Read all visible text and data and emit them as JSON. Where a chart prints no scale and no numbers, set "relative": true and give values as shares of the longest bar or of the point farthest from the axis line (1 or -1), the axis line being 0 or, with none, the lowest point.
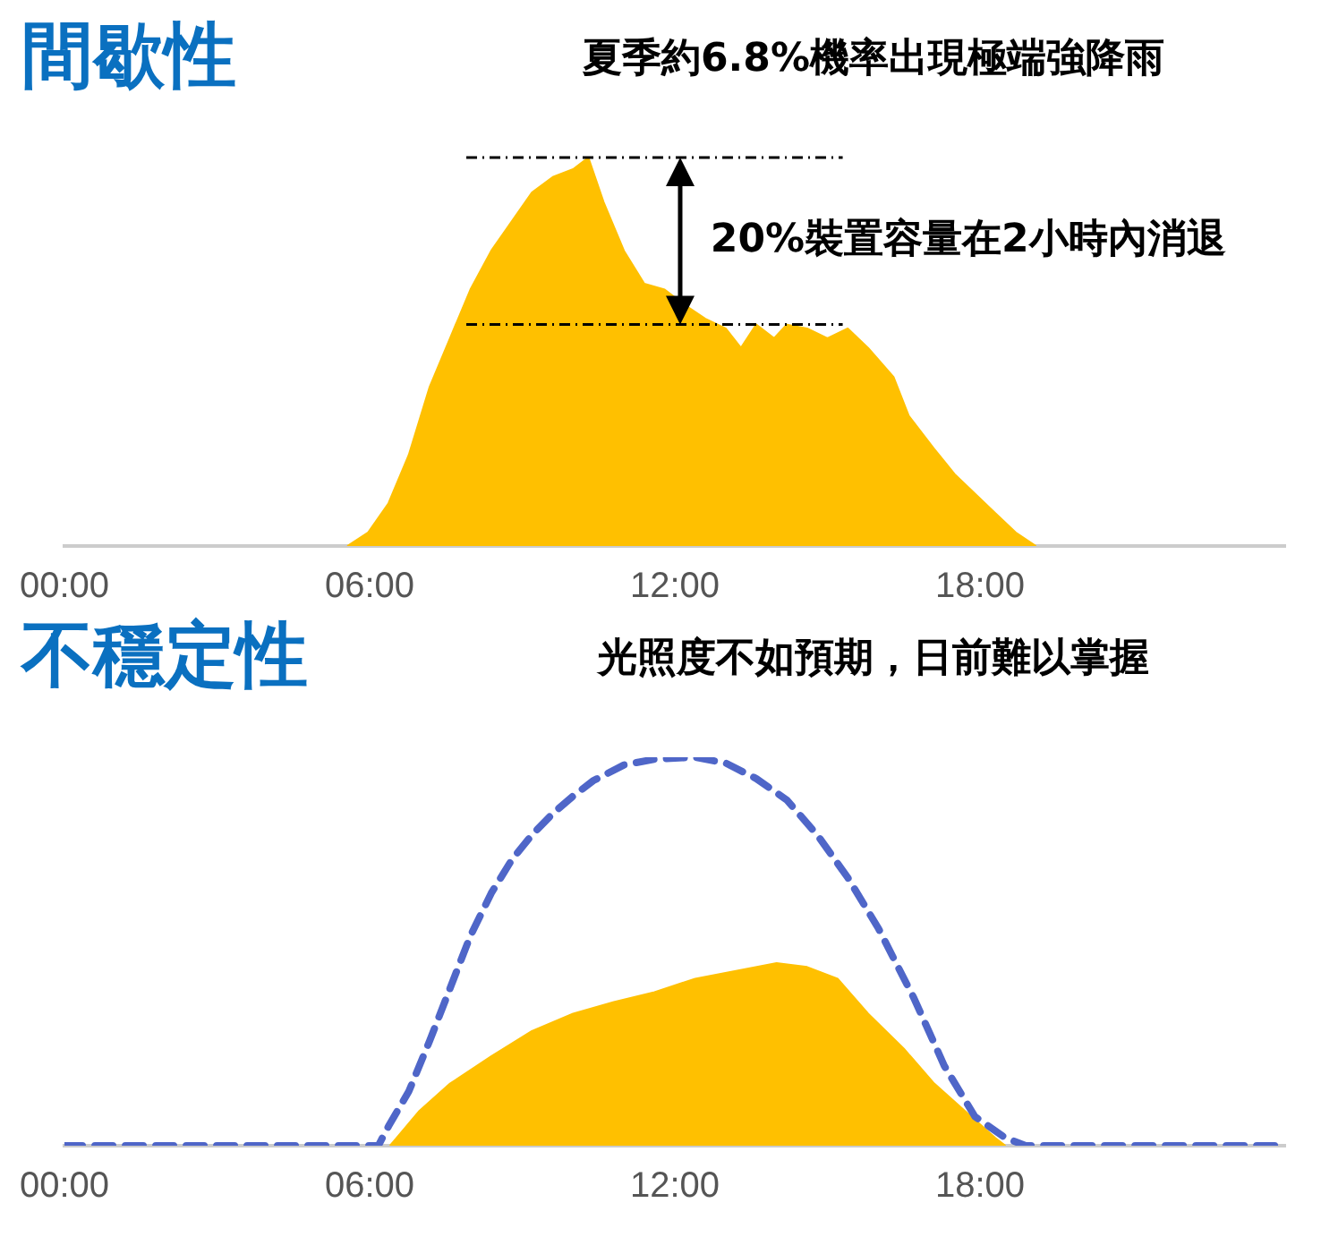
{
  "chart_data": [
    {
      "type": "area",
      "title": "間歇性",
      "relative": true,
      "xlim": [
        0,
        24
      ],
      "xticks": [
        {
          "value": 0,
          "label": "00:00"
        },
        {
          "value": 6,
          "label": "06:00"
        },
        {
          "value": 12,
          "label": "12:00"
        },
        {
          "value": 18,
          "label": "18:00"
        }
      ],
      "grid": false,
      "legend": false,
      "annotations": [
        "夏季約6.8%機率出現極端強降雨",
        "20%裝置容量在2小時內消退"
      ],
      "ref_lines": [
        {
          "axis": "y",
          "value": 1,
          "color": "#000000",
          "line_style": "dashed"
        },
        {
          "axis": "y",
          "value": 0.57,
          "color": "#000000",
          "line_style": "dashed"
        }
      ],
      "series": [
        {
          "color": "#ffc000",
          "x": [
            5.56,
            5.97,
            6.37,
            6.77,
            7.18,
            7.58,
            7.98,
            8.39,
            8.79,
            9.19,
            9.6,
            10.0,
            10.3,
            10.6,
            11.0,
            11.4,
            11.8,
            12.2,
            12.6,
            13.0,
            13.3,
            13.6,
            13.95,
            14.2,
            14.6,
            15.0,
            15.4,
            15.8,
            16.3,
            16.6,
            17.1,
            17.5,
            17.9,
            18.3,
            18.7,
            19.1
          ],
          "values": [
            0,
            0.035,
            0.11,
            0.235,
            0.41,
            0.535,
            0.66,
            0.76,
            0.835,
            0.91,
            0.95,
            0.97,
            1.0,
            0.885,
            0.76,
            0.675,
            0.66,
            0.62,
            0.585,
            0.56,
            0.51,
            0.57,
            0.535,
            0.57,
            0.56,
            0.535,
            0.56,
            0.51,
            0.435,
            0.335,
            0.25,
            0.185,
            0.135,
            0.085,
            0.035,
            0
          ]
        }
      ]
    },
    {
      "type": "area",
      "title": "不穩定性",
      "relative": true,
      "xlim": [
        0,
        24
      ],
      "xticks": [
        {
          "value": 0,
          "label": "00:00"
        },
        {
          "value": 6,
          "label": "06:00"
        },
        {
          "value": 12,
          "label": "12:00"
        },
        {
          "value": 18,
          "label": "18:00"
        }
      ],
      "grid": false,
      "legend": false,
      "annotations": [
        "光照度不如預期，日前難以掌握"
      ],
      "series": [
        {
          "color": "#ffc000",
          "x": [
            6.4,
            6.98,
            7.58,
            8.39,
            9.19,
            10.0,
            10.8,
            11.6,
            12.4,
            13.2,
            14.0,
            14.6,
            15.2,
            15.8,
            16.5,
            17.1,
            17.7,
            18.3,
            18.5
          ],
          "values": [
            0,
            0.09,
            0.16,
            0.23,
            0.295,
            0.34,
            0.37,
            0.395,
            0.43,
            0.45,
            0.47,
            0.46,
            0.43,
            0.34,
            0.25,
            0.16,
            0.09,
            0.02,
            0
          ]
        },
        {
          "type": "line",
          "color": "#4f66c8",
          "line_style": "dashed",
          "marker": "none",
          "x": [
            0,
            6.17,
            6.37,
            6.77,
            7.18,
            7.58,
            7.98,
            8.39,
            8.79,
            9.19,
            9.6,
            10.0,
            10.4,
            11.0,
            11.6,
            12.4,
            13.0,
            13.6,
            14.2,
            14.8,
            15.4,
            16.0,
            16.7,
            17.3,
            17.9,
            18.5,
            18.9,
            24
          ],
          "values": [
            0,
            0,
            0.05,
            0.14,
            0.27,
            0.405,
            0.54,
            0.65,
            0.735,
            0.8,
            0.855,
            0.9,
            0.94,
            0.98,
            0.995,
            1.0,
            0.985,
            0.945,
            0.89,
            0.8,
            0.69,
            0.56,
            0.38,
            0.205,
            0.075,
            0.02,
            0,
            0
          ]
        }
      ]
    }
  ]
}
